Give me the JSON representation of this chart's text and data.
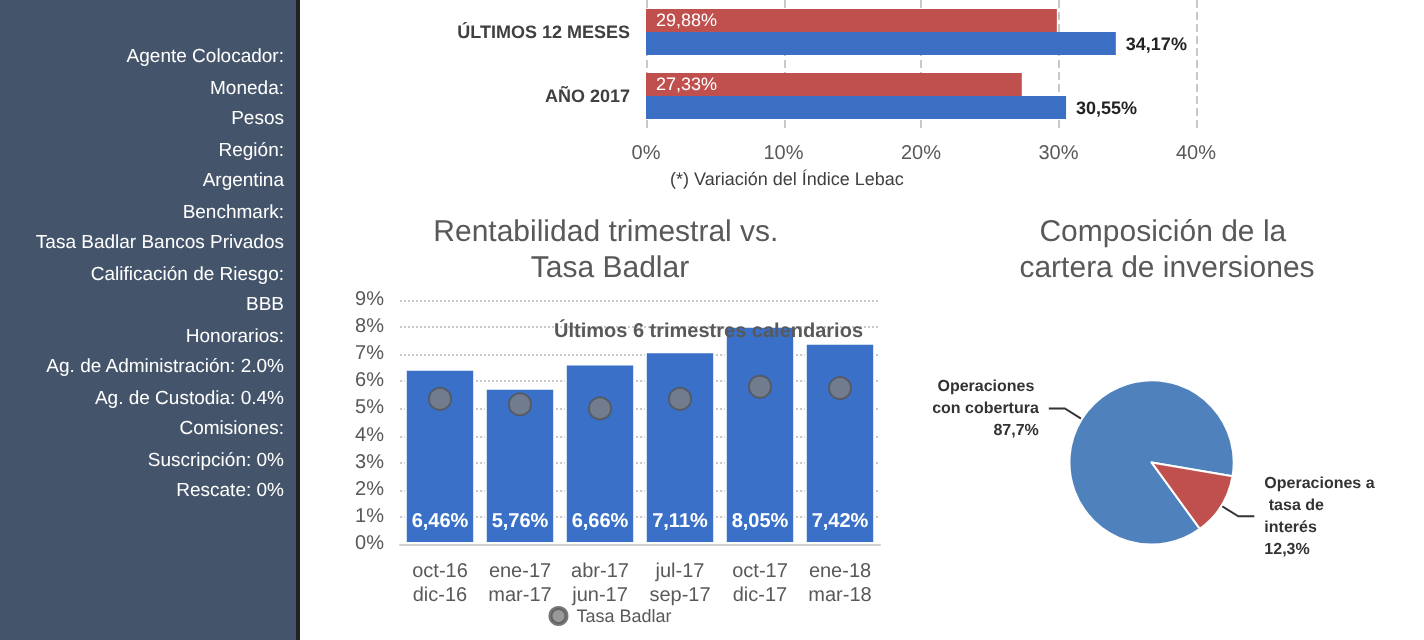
{
  "chart_data": [
    {
      "type": "other",
      "annotations": [
        "Agente Colocador:",
        "Moneda:",
        "Pesos",
        "Región:",
        "Argentina",
        "Benchmark:",
        "Tasa Badlar Bancos Privados",
        "Calificación de Riesgo:",
        "BBB",
        "Honorarios:",
        "Ag. de Administración: 2.0%",
        "Ag. de Custodia: 0.4%",
        "Comisiones:",
        "Suscripción: 0%",
        "Rescate: 0%"
      ]
    },
    {
      "type": "bar",
      "orientation": "horizontal",
      "categories": [
        "ÚLTIMOS 12 MESES",
        "AÑO 2017"
      ],
      "series": [
        {
          "color": "#c0504d",
          "values": [
            29.88,
            27.33
          ],
          "value_labels": [
            "29,88%",
            "27,33%"
          ]
        },
        {
          "color": "#3a6fc4",
          "values": [
            34.17,
            30.55
          ],
          "value_labels": [
            "34,17%",
            "30,55%"
          ]
        }
      ],
      "xlim": [
        0,
        40
      ],
      "xticks": [
        {
          "value": 0,
          "label": "0%"
        },
        {
          "value": 10,
          "label": "10%"
        },
        {
          "value": 20,
          "label": "20%"
        },
        {
          "value": 30,
          "label": "30%"
        },
        {
          "value": 40,
          "label": "40%"
        }
      ],
      "grid": "x",
      "annotations": [
        "(*) Variación del Índice Lebac"
      ]
    },
    {
      "type": "bar",
      "title": "Rentabilidad trimestral vs. Tasa Badlar",
      "subtitle": "Últimos 6 trimestres calendarios",
      "categories": [
        "oct-16\ndic-16",
        "ene-17\nmar-17",
        "abr-17\njun-17",
        "jul-17\nsep-17",
        "oct-17\ndic-17",
        "ene-18\nmar-18"
      ],
      "series": [
        {
          "color": "#3a70c8",
          "values": [
            6.46,
            5.76,
            6.66,
            7.11,
            8.05,
            7.42
          ],
          "value_labels": [
            "6,46%",
            "5,76%",
            "6,66%",
            "7,11%",
            "8,05%",
            "7,42%"
          ]
        },
        {
          "type": "scatter",
          "name": "Tasa Badlar",
          "color": "#808080",
          "x": [
            "oct-16\ndic-16",
            "ene-17\nmar-17",
            "abr-17\njun-17",
            "jul-17\nsep-17",
            "oct-17\ndic-17",
            "ene-18\nmar-18"
          ],
          "values": [
            5.35,
            5.15,
            5.0,
            5.35,
            5.8,
            5.75
          ]
        }
      ],
      "ylim": [
        0,
        9
      ],
      "yticks": [
        {
          "value": 0,
          "label": "0%"
        },
        {
          "value": 1,
          "label": "1%"
        },
        {
          "value": 2,
          "label": "2%"
        },
        {
          "value": 3,
          "label": "3%"
        },
        {
          "value": 4,
          "label": "4%"
        },
        {
          "value": 5,
          "label": "5%"
        },
        {
          "value": 6,
          "label": "6%"
        },
        {
          "value": 7,
          "label": "7%"
        },
        {
          "value": 8,
          "label": "8%"
        },
        {
          "value": 9,
          "label": "9%"
        }
      ],
      "grid": "y",
      "legend": "bottom",
      "marker": "circle"
    },
    {
      "type": "pie",
      "title": "Composición de la cartera de inversiones",
      "categories": [
        "Operaciones con cobertura",
        "Operaciones a tasa de interés"
      ],
      "values": [
        87.7,
        12.3
      ],
      "colors": [
        "#4f81bd",
        "#c0504d"
      ],
      "value_labels": [
        "87,7%",
        "12,3%"
      ]
    }
  ]
}
